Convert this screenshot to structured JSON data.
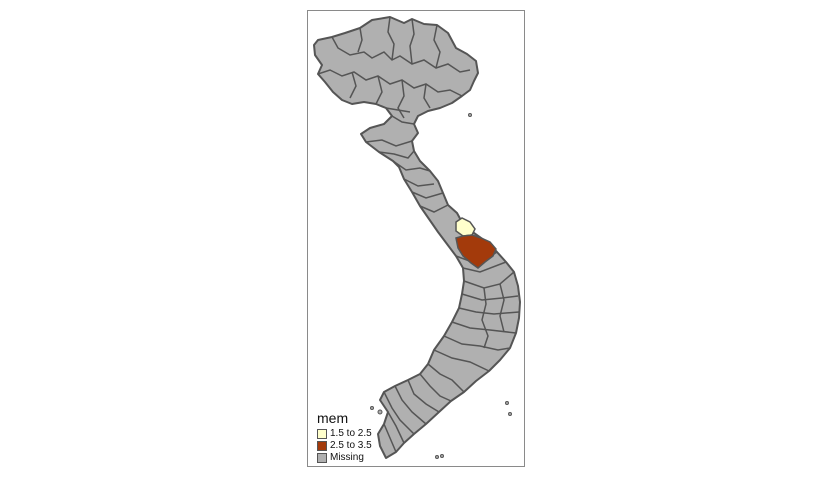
{
  "map": {
    "legend": {
      "title": "mem",
      "items": [
        {
          "label": "1.5 to 2.5",
          "color": "#ffffcc"
        },
        {
          "label": "2.5 to 3.5",
          "color": "#a33a0b"
        },
        {
          "label": "Missing",
          "color": "#b0b0b0"
        }
      ]
    },
    "colors": {
      "missing": "#b0b0b0",
      "border": "#555555",
      "frame": "#8a8a8a"
    }
  }
}
